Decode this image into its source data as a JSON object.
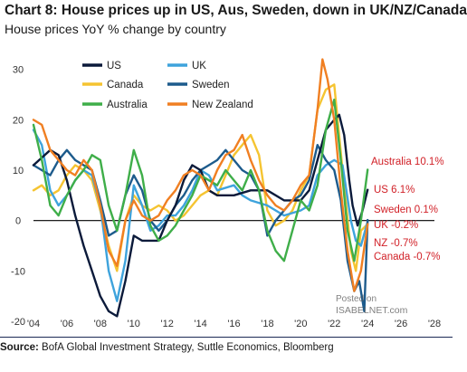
{
  "header": {
    "title": "Chart 8: House prices up in US, Aus, Sweden, down in UK/NZ/Canada",
    "subtitle": "House prices YoY % change by country"
  },
  "footer": {
    "source_label": "Source:",
    "source_text": "BofA Global Investment Strategy, Suttle Economics, Bloomberg"
  },
  "watermark": {
    "line1": "Posted on",
    "line2": "ISABELNET.com"
  },
  "colors": {
    "US": "#0b1a3a",
    "UK": "#3ea3dc",
    "Canada": "#f5c431",
    "Sweden": "#1d5b8c",
    "Australia": "#3fae49",
    "New Zealand": "#f07f22",
    "annotation": "#d11f26",
    "zero_line": "#000000"
  },
  "chart_data": {
    "type": "line",
    "title": "Chart 8: House prices up in US, Aus, Sweden, down in UK/NZ/Canada",
    "subtitle": "House prices YoY % change by country",
    "xlabel": "",
    "ylabel": "",
    "xlim": [
      2004,
      2028
    ],
    "ylim": [
      -20,
      33
    ],
    "x_ticks": [
      "'04",
      "'06",
      "'08",
      "'10",
      "'12",
      "'14",
      "'16",
      "'18",
      "'20",
      "'22",
      "'24",
      "'26",
      "'28"
    ],
    "x_tick_values": [
      2004,
      2006,
      2008,
      2010,
      2012,
      2014,
      2016,
      2018,
      2020,
      2022,
      2024,
      2026,
      2028
    ],
    "y_ticks": [
      30,
      20,
      10,
      0,
      -10,
      -20
    ],
    "grid": false,
    "legend": "top-left",
    "annotations": [
      {
        "text": "Australia 10.1%",
        "series": "Australia"
      },
      {
        "text": "US 6.1%",
        "series": "US"
      },
      {
        "text": "Sweden 0.1%",
        "series": "Sweden"
      },
      {
        "text": "UK -0.2%",
        "series": "UK"
      },
      {
        "text": "NZ -0.7%",
        "series": "New Zealand"
      },
      {
        "text": "Canada -0.7%",
        "series": "Canada"
      }
    ],
    "series": [
      {
        "name": "US",
        "points": [
          [
            2004,
            11
          ],
          [
            2005,
            14
          ],
          [
            2005.5,
            13
          ],
          [
            2006,
            8
          ],
          [
            2006.5,
            1
          ],
          [
            2007,
            -5
          ],
          [
            2007.5,
            -10
          ],
          [
            2008,
            -15
          ],
          [
            2008.5,
            -18
          ],
          [
            2009,
            -19
          ],
          [
            2009.5,
            -12
          ],
          [
            2010,
            -3
          ],
          [
            2010.5,
            -4
          ],
          [
            2011,
            -4
          ],
          [
            2011.5,
            -4
          ],
          [
            2012,
            0
          ],
          [
            2012.5,
            3
          ],
          [
            2013,
            8
          ],
          [
            2013.5,
            11
          ],
          [
            2014,
            10
          ],
          [
            2014.5,
            6
          ],
          [
            2015,
            5
          ],
          [
            2016,
            5
          ],
          [
            2017,
            6
          ],
          [
            2018,
            6
          ],
          [
            2019,
            4
          ],
          [
            2020,
            4
          ],
          [
            2020.5,
            6
          ],
          [
            2021,
            12
          ],
          [
            2021.5,
            18
          ],
          [
            2022,
            20
          ],
          [
            2022.3,
            21
          ],
          [
            2022.6,
            17
          ],
          [
            2022.9,
            8
          ],
          [
            2023.1,
            3
          ],
          [
            2023.4,
            -1
          ],
          [
            2023.7,
            2
          ],
          [
            2024,
            6.1
          ]
        ]
      },
      {
        "name": "UK",
        "points": [
          [
            2004,
            18
          ],
          [
            2004.5,
            15
          ],
          [
            2005,
            6
          ],
          [
            2005.5,
            3
          ],
          [
            2006,
            5
          ],
          [
            2006.5,
            8
          ],
          [
            2007,
            10
          ],
          [
            2007.5,
            9
          ],
          [
            2008,
            3
          ],
          [
            2008.5,
            -10
          ],
          [
            2009,
            -16
          ],
          [
            2009.5,
            -8
          ],
          [
            2010,
            7
          ],
          [
            2010.5,
            3
          ],
          [
            2011,
            -2
          ],
          [
            2011.5,
            -1
          ],
          [
            2012,
            1
          ],
          [
            2012.5,
            1
          ],
          [
            2013,
            3
          ],
          [
            2013.5,
            6
          ],
          [
            2014,
            10
          ],
          [
            2014.5,
            9
          ],
          [
            2015,
            6
          ],
          [
            2016,
            7
          ],
          [
            2016.5,
            5
          ],
          [
            2017,
            4
          ],
          [
            2018,
            3
          ],
          [
            2019,
            1
          ],
          [
            2020,
            2
          ],
          [
            2020.5,
            3
          ],
          [
            2021,
            9
          ],
          [
            2021.5,
            11
          ],
          [
            2022,
            12
          ],
          [
            2022.5,
            11
          ],
          [
            2023,
            0
          ],
          [
            2023.3,
            -4
          ],
          [
            2023.6,
            -5
          ],
          [
            2024,
            -0.2
          ]
        ]
      },
      {
        "name": "Canada",
        "points": [
          [
            2004,
            6
          ],
          [
            2004.5,
            7
          ],
          [
            2005,
            5
          ],
          [
            2005.5,
            6
          ],
          [
            2006,
            9
          ],
          [
            2006.5,
            11
          ],
          [
            2007,
            10
          ],
          [
            2007.5,
            8
          ],
          [
            2008,
            2
          ],
          [
            2008.5,
            -5
          ],
          [
            2009,
            -10
          ],
          [
            2009.5,
            0
          ],
          [
            2010,
            5
          ],
          [
            2010.5,
            3
          ],
          [
            2011,
            2
          ],
          [
            2011.5,
            3
          ],
          [
            2012,
            2
          ],
          [
            2012.5,
            0
          ],
          [
            2013,
            1
          ],
          [
            2013.5,
            3
          ],
          [
            2014,
            5
          ],
          [
            2014.5,
            6
          ],
          [
            2015,
            5
          ],
          [
            2015.5,
            9
          ],
          [
            2016,
            13
          ],
          [
            2016.5,
            15
          ],
          [
            2017,
            17
          ],
          [
            2017.5,
            13
          ],
          [
            2018,
            2
          ],
          [
            2018.5,
            -1
          ],
          [
            2019,
            0
          ],
          [
            2019.5,
            2
          ],
          [
            2020,
            6
          ],
          [
            2020.5,
            9
          ],
          [
            2021,
            22
          ],
          [
            2021.5,
            26
          ],
          [
            2022,
            27
          ],
          [
            2022.5,
            10
          ],
          [
            2023,
            -6
          ],
          [
            2023.3,
            -10
          ],
          [
            2023.6,
            -2
          ],
          [
            2024,
            -0.7
          ]
        ]
      },
      {
        "name": "Sweden",
        "points": [
          [
            2004,
            11
          ],
          [
            2004.5,
            10
          ],
          [
            2005,
            9
          ],
          [
            2005.5,
            12
          ],
          [
            2006,
            14
          ],
          [
            2006.5,
            12
          ],
          [
            2007,
            11
          ],
          [
            2007.5,
            10
          ],
          [
            2008,
            4
          ],
          [
            2008.5,
            -3
          ],
          [
            2009,
            -2
          ],
          [
            2009.5,
            5
          ],
          [
            2010,
            9
          ],
          [
            2010.5,
            6
          ],
          [
            2011,
            0
          ],
          [
            2011.5,
            -2
          ],
          [
            2012,
            0
          ],
          [
            2012.5,
            3
          ],
          [
            2013,
            5
          ],
          [
            2013.5,
            8
          ],
          [
            2014,
            10
          ],
          [
            2014.5,
            11
          ],
          [
            2015,
            12
          ],
          [
            2015.5,
            14
          ],
          [
            2016,
            12
          ],
          [
            2016.5,
            10
          ],
          [
            2017,
            9
          ],
          [
            2017.5,
            6
          ],
          [
            2018,
            -3
          ],
          [
            2018.5,
            0
          ],
          [
            2019,
            2
          ],
          [
            2019.5,
            4
          ],
          [
            2020,
            5
          ],
          [
            2020.5,
            8
          ],
          [
            2021,
            15
          ],
          [
            2021.5,
            12
          ],
          [
            2022,
            10
          ],
          [
            2022.4,
            4
          ],
          [
            2022.8,
            -8
          ],
          [
            2023.2,
            -14
          ],
          [
            2023.5,
            -12
          ],
          [
            2023.8,
            -18
          ],
          [
            2024,
            0.1
          ]
        ]
      },
      {
        "name": "Australia",
        "points": [
          [
            2004,
            19
          ],
          [
            2004.5,
            12
          ],
          [
            2005,
            3
          ],
          [
            2005.5,
            1
          ],
          [
            2006,
            5
          ],
          [
            2006.5,
            8
          ],
          [
            2007,
            10
          ],
          [
            2007.5,
            13
          ],
          [
            2008,
            12
          ],
          [
            2008.5,
            3
          ],
          [
            2009,
            -2
          ],
          [
            2009.5,
            5
          ],
          [
            2010,
            14
          ],
          [
            2010.5,
            9
          ],
          [
            2011,
            -1
          ],
          [
            2011.5,
            -4
          ],
          [
            2012,
            -3
          ],
          [
            2012.5,
            -1
          ],
          [
            2013,
            2
          ],
          [
            2013.5,
            5
          ],
          [
            2014,
            9
          ],
          [
            2014.5,
            8
          ],
          [
            2015,
            7
          ],
          [
            2015.5,
            10
          ],
          [
            2016,
            8
          ],
          [
            2016.5,
            6
          ],
          [
            2017,
            10
          ],
          [
            2017.5,
            6
          ],
          [
            2018,
            -2
          ],
          [
            2018.5,
            -6
          ],
          [
            2019,
            -8
          ],
          [
            2019.5,
            -2
          ],
          [
            2020,
            4
          ],
          [
            2020.5,
            2
          ],
          [
            2021,
            7
          ],
          [
            2021.5,
            18
          ],
          [
            2022,
            24
          ],
          [
            2022.4,
            12
          ],
          [
            2022.8,
            -2
          ],
          [
            2023.2,
            -8
          ],
          [
            2023.6,
            0
          ],
          [
            2024,
            10.1
          ]
        ]
      },
      {
        "name": "New Zealand",
        "points": [
          [
            2004,
            20
          ],
          [
            2004.5,
            19
          ],
          [
            2005,
            14
          ],
          [
            2005.5,
            12
          ],
          [
            2006,
            10
          ],
          [
            2006.5,
            9
          ],
          [
            2007,
            12
          ],
          [
            2007.5,
            10
          ],
          [
            2008,
            3
          ],
          [
            2008.5,
            -6
          ],
          [
            2009,
            -9
          ],
          [
            2009.5,
            0
          ],
          [
            2010,
            4
          ],
          [
            2010.5,
            1
          ],
          [
            2011,
            0
          ],
          [
            2011.5,
            1
          ],
          [
            2012,
            4
          ],
          [
            2012.5,
            6
          ],
          [
            2013,
            9
          ],
          [
            2013.5,
            10
          ],
          [
            2014,
            9
          ],
          [
            2014.5,
            6
          ],
          [
            2015,
            10
          ],
          [
            2015.5,
            13
          ],
          [
            2016,
            14
          ],
          [
            2016.5,
            17
          ],
          [
            2017,
            12
          ],
          [
            2017.5,
            8
          ],
          [
            2018,
            5
          ],
          [
            2018.5,
            3
          ],
          [
            2019,
            2
          ],
          [
            2019.5,
            4
          ],
          [
            2020,
            7
          ],
          [
            2020.5,
            9
          ],
          [
            2021,
            22
          ],
          [
            2021.3,
            32
          ],
          [
            2021.6,
            28
          ],
          [
            2022,
            20
          ],
          [
            2022.4,
            6
          ],
          [
            2022.8,
            -6
          ],
          [
            2023.2,
            -14
          ],
          [
            2023.6,
            -10
          ],
          [
            2024,
            -0.7
          ]
        ]
      }
    ]
  }
}
